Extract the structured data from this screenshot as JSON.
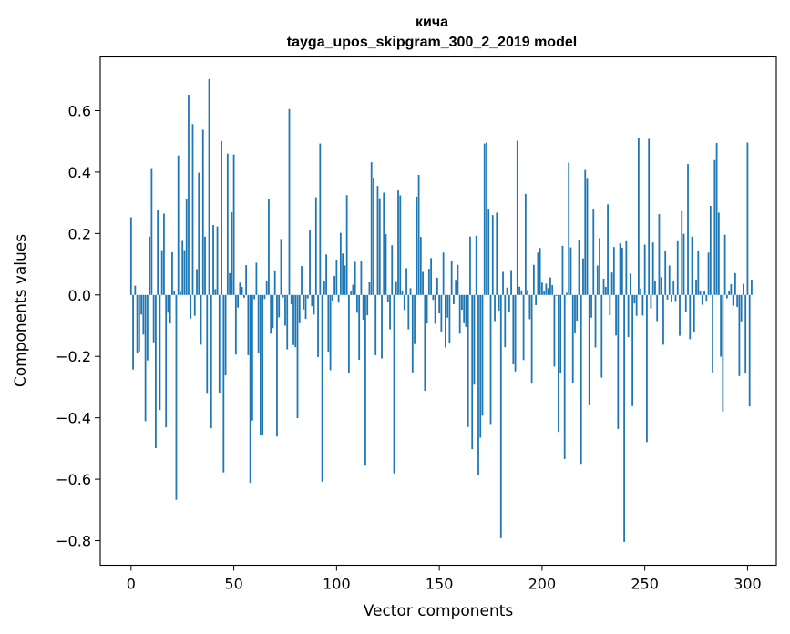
{
  "chart_data": {
    "type": "bar",
    "title": "кича",
    "subtitle": "tayga_upos_skipgram_300_2_2019 model",
    "xlabel": "Vector components",
    "ylabel": "Components values",
    "xlim": [
      -15,
      314
    ],
    "ylim": [
      -0.88,
      0.775
    ],
    "xticks": [
      0,
      50,
      100,
      150,
      200,
      250,
      300
    ],
    "xtick_labels": [
      "0",
      "50",
      "100",
      "150",
      "200",
      "250",
      "300"
    ],
    "yticks": [
      -0.8,
      -0.6,
      -0.4,
      -0.2,
      0.0,
      0.2,
      0.4,
      0.6
    ],
    "ytick_labels": [
      "−0.8",
      "−0.6",
      "−0.4",
      "−0.2",
      "0.0",
      "0.2",
      "0.4",
      "0.6"
    ],
    "grid": false,
    "bar_color": "#1f77b4",
    "x_start": 0,
    "values": [
      0.253,
      -0.243,
      0.03,
      -0.19,
      -0.184,
      -0.064,
      -0.129,
      -0.411,
      -0.213,
      0.19,
      0.413,
      -0.154,
      -0.499,
      0.275,
      -0.375,
      0.146,
      0.265,
      -0.431,
      -0.058,
      -0.093,
      0.139,
      0.013,
      -0.667,
      0.454,
      0.01,
      0.176,
      0.146,
      0.311,
      0.652,
      -0.077,
      0.556,
      -0.068,
      0.084,
      0.398,
      -0.162,
      0.538,
      0.19,
      -0.319,
      0.703,
      -0.434,
      0.228,
      0.019,
      0.223,
      -0.318,
      0.501,
      -0.578,
      -0.262,
      0.46,
      0.071,
      0.269,
      0.457,
      -0.194,
      -0.041,
      0.04,
      0.026,
      -0.009,
      0.097,
      -0.196,
      -0.612,
      -0.409,
      -0.014,
      0.105,
      -0.189,
      -0.457,
      -0.457,
      -0.013,
      0.047,
      0.314,
      -0.126,
      -0.108,
      0.08,
      -0.461,
      -0.073,
      0.182,
      -0.008,
      -0.1,
      -0.177,
      0.605,
      -0.03,
      -0.163,
      -0.17,
      -0.401,
      -0.092,
      0.094,
      -0.047,
      -0.078,
      -0.011,
      0.21,
      -0.037,
      -0.064,
      0.318,
      -0.202,
      0.493,
      -0.608,
      0.044,
      0.132,
      -0.185,
      -0.245,
      -0.018,
      0.062,
      0.115,
      -0.025,
      0.202,
      0.135,
      0.096,
      0.325,
      -0.253,
      0.011,
      0.033,
      0.108,
      -0.058,
      -0.211,
      0.112,
      -0.081,
      -0.556,
      -0.066,
      0.041,
      0.432,
      0.382,
      -0.196,
      0.355,
      0.315,
      -0.207,
      0.333,
      0.198,
      -0.022,
      -0.112,
      0.162,
      -0.581,
      0.042,
      0.34,
      0.324,
      0.011,
      -0.049,
      0.087,
      -0.112,
      0.022,
      -0.252,
      -0.16,
      0.32,
      0.391,
      0.189,
      0.075,
      -0.312,
      -0.093,
      0.085,
      0.12,
      -0.016,
      -0.094,
      0.056,
      -0.06,
      -0.121,
      0.138,
      -0.171,
      -0.074,
      -0.156,
      0.112,
      -0.03,
      0.049,
      0.098,
      -0.126,
      -0.048,
      -0.092,
      -0.104,
      -0.43,
      0.19,
      -0.502,
      -0.292,
      0.193,
      -0.585,
      -0.465,
      -0.393,
      0.493,
      0.496,
      0.281,
      -0.423,
      0.26,
      -0.085,
      0.268,
      -0.051,
      -0.792,
      0.075,
      -0.17,
      0.024,
      -0.056,
      0.081,
      -0.226,
      -0.249,
      0.502,
      0.027,
      0.015,
      -0.212,
      0.329,
      0.016,
      -0.079,
      -0.289,
      0.098,
      -0.033,
      0.138,
      0.153,
      0.04,
      0.011,
      0.037,
      0.022,
      0.057,
      0.032,
      -0.233,
      -0.003,
      -0.446,
      -0.254,
      0.16,
      -0.534,
      0.007,
      0.431,
      0.155,
      -0.288,
      -0.125,
      -0.084,
      0.179,
      -0.55,
      0.119,
      0.407,
      0.381,
      -0.359,
      -0.074,
      0.281,
      -0.171,
      0.096,
      0.185,
      -0.269,
      0.053,
      0.026,
      0.295,
      -0.066,
      0.073,
      0.156,
      -0.132,
      -0.436,
      0.168,
      0.154,
      -0.804,
      0.175,
      -0.137,
      0.07,
      -0.362,
      -0.028,
      -0.068,
      0.512,
      0.021,
      -0.067,
      0.164,
      -0.479,
      0.508,
      -0.044,
      0.171,
      0.046,
      -0.085,
      0.263,
      0.058,
      -0.162,
      0.144,
      -0.015,
      0.096,
      -0.024,
      0.044,
      -0.02,
      0.175,
      -0.133,
      0.273,
      0.199,
      -0.055,
      0.426,
      -0.144,
      0.19,
      -0.121,
      0.05,
      0.145,
      0.014,
      -0.032,
      0.013,
      -0.019,
      0.138,
      0.29,
      -0.252,
      0.439,
      0.495,
      0.268,
      -0.201,
      -0.379,
      0.196,
      -0.011,
      0.013,
      0.035,
      -0.035,
      0.071,
      -0.039,
      -0.264,
      -0.086,
      0.036,
      -0.256,
      0.496,
      -0.363,
      0.05
    ]
  }
}
